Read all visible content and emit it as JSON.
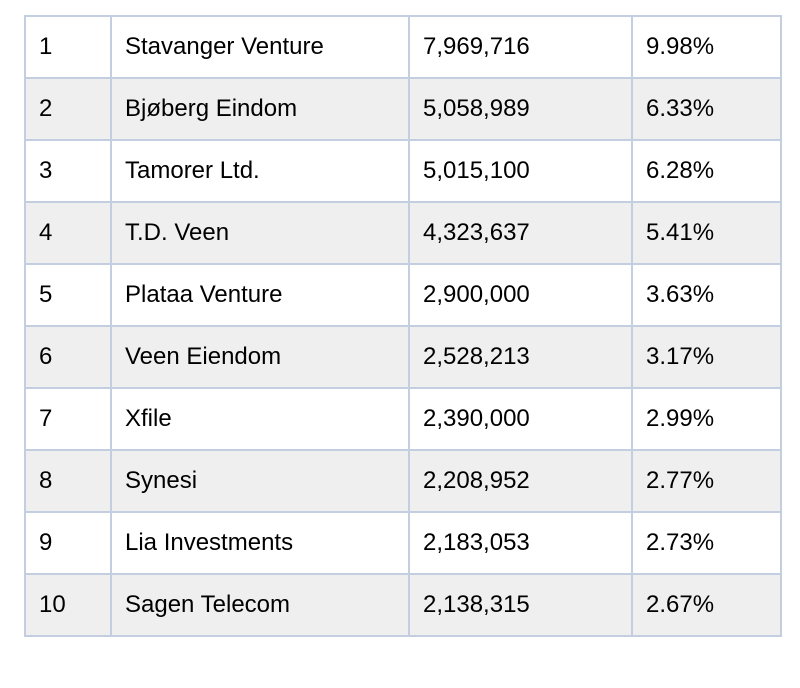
{
  "shareholders": {
    "rows": [
      {
        "rank": "1",
        "name": "Stavanger Venture",
        "shares": "7,969,716",
        "percent": "9.98%"
      },
      {
        "rank": "2",
        "name": "Bjøberg Eindom",
        "shares": "5,058,989",
        "percent": "6.33%"
      },
      {
        "rank": "3",
        "name": "Tamorer Ltd.",
        "shares": "5,015,100",
        "percent": "6.28%"
      },
      {
        "rank": "4",
        "name": "T.D. Veen",
        "shares": "4,323,637",
        "percent": "5.41%"
      },
      {
        "rank": "5",
        "name": "Plataa Venture",
        "shares": "2,900,000",
        "percent": "3.63%"
      },
      {
        "rank": "6",
        "name": "Veen Eiendom",
        "shares": "2,528,213",
        "percent": "3.17%"
      },
      {
        "rank": "7",
        "name": "Xfile",
        "shares": "2,390,000",
        "percent": "2.99%"
      },
      {
        "rank": "8",
        "name": "Synesi",
        "shares": "2,208,952",
        "percent": "2.77%"
      },
      {
        "rank": "9",
        "name": "Lia Investments",
        "shares": "2,183,053",
        "percent": "2.73%"
      },
      {
        "rank": "10",
        "name": "Sagen Telecom",
        "shares": "2,138,315",
        "percent": "2.67%"
      }
    ]
  }
}
